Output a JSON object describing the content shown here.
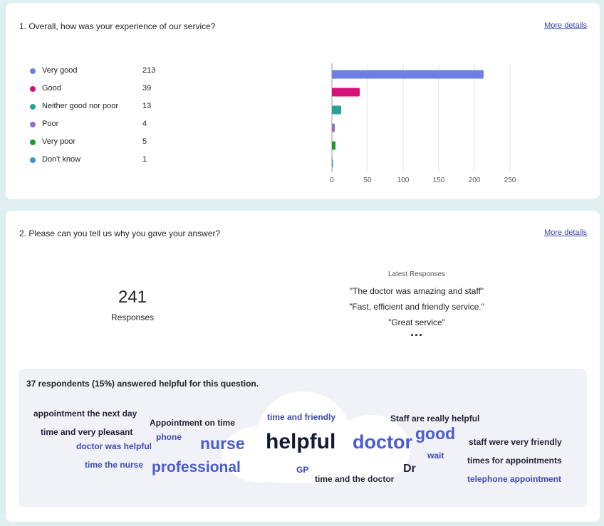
{
  "q1": {
    "title": "1. Overall, how was your experience of our service?",
    "more_details": "More details",
    "options": [
      {
        "label": "Very good",
        "count": 213,
        "color": "#6e7ee6"
      },
      {
        "label": "Good",
        "count": 39,
        "color": "#d6117a"
      },
      {
        "label": "Neither good nor poor",
        "count": 13,
        "color": "#2aa198"
      },
      {
        "label": "Poor",
        "count": 4,
        "color": "#9071c6"
      },
      {
        "label": "Very poor",
        "count": 5,
        "color": "#1a9c2a"
      },
      {
        "label": "Don't know",
        "count": 1,
        "color": "#3b94d9"
      }
    ]
  },
  "chart_data": {
    "type": "bar",
    "orientation": "horizontal",
    "categories": [
      "Very good",
      "Good",
      "Neither good nor poor",
      "Poor",
      "Very poor",
      "Don't know"
    ],
    "values": [
      213,
      39,
      13,
      4,
      5,
      1
    ],
    "colors": [
      "#6e7ee6",
      "#d6117a",
      "#2aa198",
      "#9071c6",
      "#1a9c2a",
      "#3b94d9"
    ],
    "xlim": [
      0,
      250
    ],
    "xticks": [
      0,
      50,
      100,
      150,
      200,
      250
    ],
    "grid": true
  },
  "q2": {
    "title": "2. Please can you tell us why you gave your answer?",
    "more_details": "More details",
    "response_count": "241",
    "response_label": "Responses",
    "latest_title": "Latest Responses",
    "latest": [
      "\"The doctor was amazing and staff\"",
      "\"Fast, efficient and friendly service.\"",
      "\"Great service\""
    ],
    "ellipsis": "...",
    "summary": "37 respondents (15%) answered helpful for this question.",
    "words": [
      {
        "text": "appointment the next day",
        "color": "#1f2235"
      },
      {
        "text": "time and very pleasant",
        "color": "#1f2235"
      },
      {
        "text": "doctor was helpful",
        "color": "#3c4ab0"
      },
      {
        "text": "time the nurse",
        "color": "#3c4ab0"
      },
      {
        "text": "Appointment on time",
        "color": "#1f2235"
      },
      {
        "text": "phone",
        "color": "#3c4ab0"
      },
      {
        "text": "nurse",
        "color": "#4a5bd4"
      },
      {
        "text": "professional",
        "color": "#4a5bd4"
      },
      {
        "text": "time and friendly",
        "color": "#3c4ab0"
      },
      {
        "text": "helpful",
        "color": "#141a33"
      },
      {
        "text": "GP",
        "color": "#3c4ab0"
      },
      {
        "text": "doctor",
        "color": "#4a5bd4"
      },
      {
        "text": "time and the doctor",
        "color": "#1f2235"
      },
      {
        "text": "Staff are really helpful",
        "color": "#1f2235"
      },
      {
        "text": "good",
        "color": "#4a5bd4"
      },
      {
        "text": "wait",
        "color": "#3c4ab0"
      },
      {
        "text": "Dr",
        "color": "#1f2235"
      },
      {
        "text": "staff were very friendly",
        "color": "#1f2235"
      },
      {
        "text": "times for appointments",
        "color": "#1f2235"
      },
      {
        "text": "telephone appointment",
        "color": "#3c4ab0"
      }
    ]
  }
}
